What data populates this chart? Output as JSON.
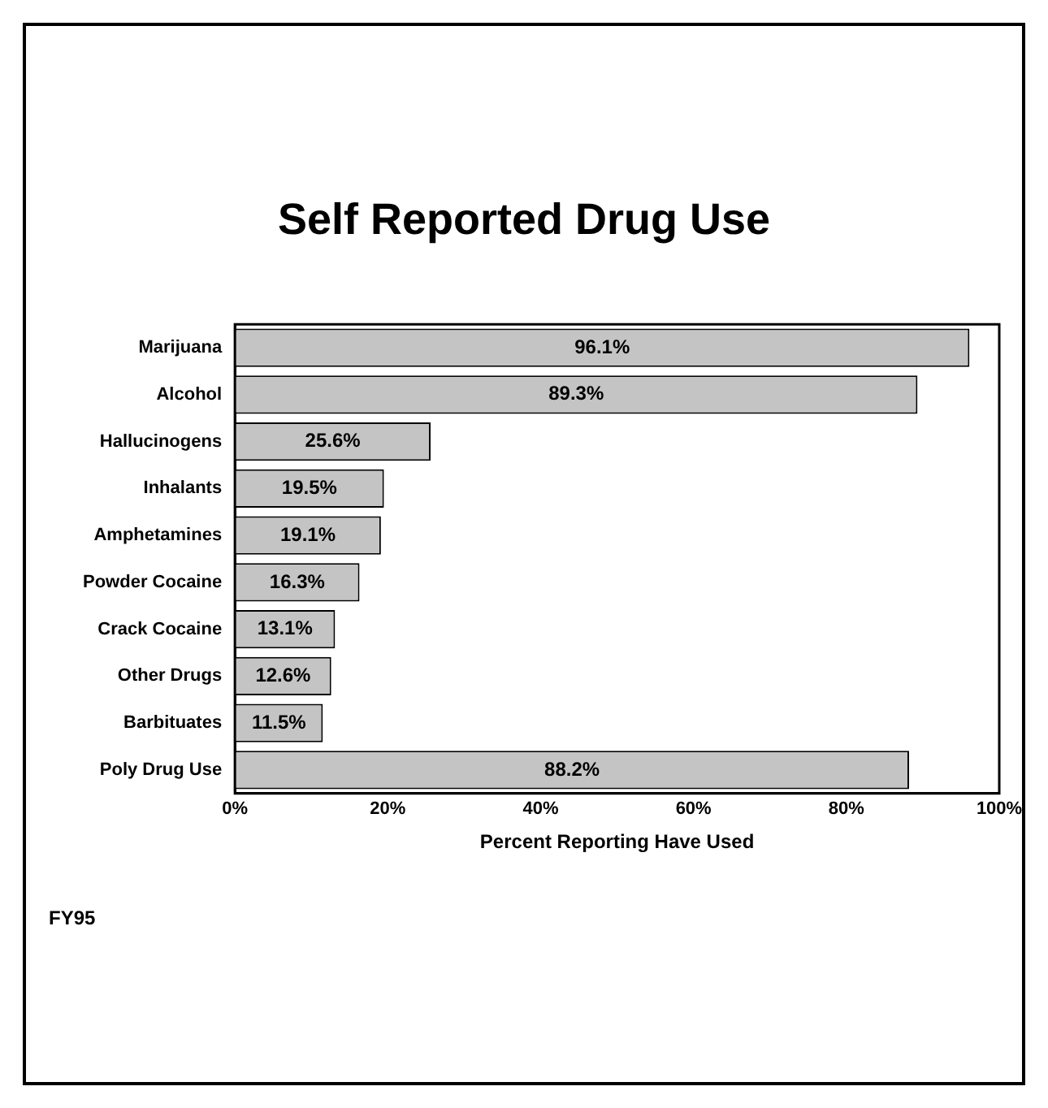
{
  "chart_data": {
    "type": "bar",
    "orientation": "horizontal",
    "title": "Self Reported Drug Use",
    "xlabel": "Percent Reporting Have Used",
    "categories": [
      "Marijuana",
      "Alcohol",
      "Hallucinogens",
      "Inhalants",
      "Amphetamines",
      "Powder Cocaine",
      "Crack Cocaine",
      "Other Drugs",
      "Barbituates",
      "Poly Drug Use"
    ],
    "values": [
      96.1,
      89.3,
      25.6,
      19.5,
      19.1,
      16.3,
      13.1,
      12.6,
      11.5,
      88.2
    ],
    "value_labels": [
      "96.1%",
      "89.3%",
      "25.6%",
      "19.5%",
      "19.1%",
      "16.3%",
      "13.1%",
      "12.6%",
      "11.5%",
      "88.2%"
    ],
    "color": "#c4c4c4",
    "xlim": [
      0,
      100
    ],
    "xticks": [
      {
        "value": 0,
        "label": "0%"
      },
      {
        "value": 20,
        "label": "20%"
      },
      {
        "value": 40,
        "label": "40%"
      },
      {
        "value": 60,
        "label": "60%"
      },
      {
        "value": 80,
        "label": "80%"
      },
      {
        "value": 100,
        "label": "100%"
      }
    ],
    "grid": false,
    "legend": false,
    "annotations": [
      "FY95"
    ]
  }
}
